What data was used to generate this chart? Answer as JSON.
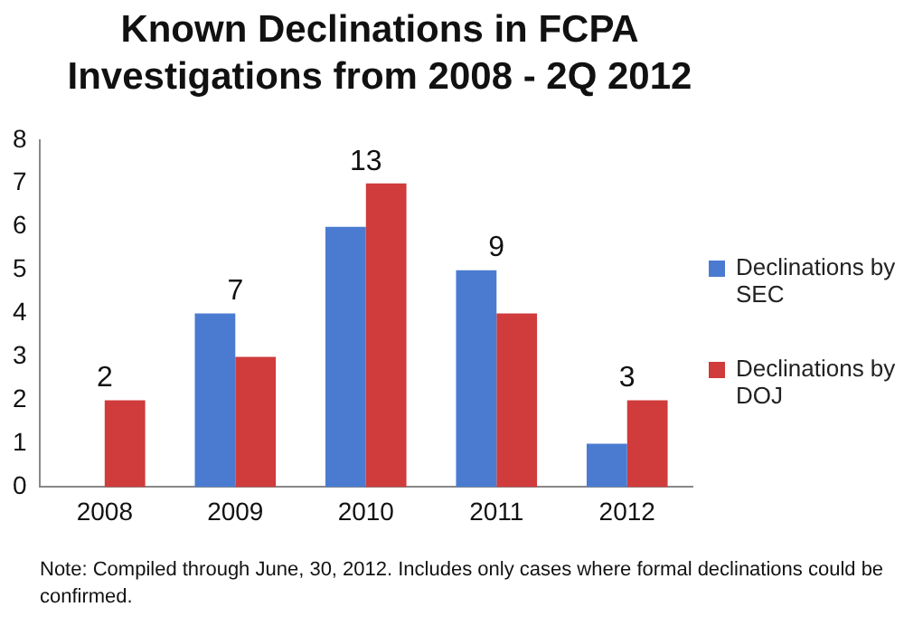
{
  "chart_data": {
    "type": "bar",
    "title": "Known Declinations in FCPA Investigations from 2008 - 2Q 2012",
    "categories": [
      "2008",
      "2009",
      "2010",
      "2011",
      "2012"
    ],
    "series": [
      {
        "name": "Declinations by SEC",
        "color": "#4a7bd0",
        "values": [
          0,
          4,
          6,
          5,
          1
        ]
      },
      {
        "name": "Declinations by DOJ",
        "color": "#d03b3b",
        "values": [
          2,
          3,
          7,
          4,
          2
        ]
      }
    ],
    "totals": [
      "2",
      "7",
      "13",
      "9",
      "3"
    ],
    "ylim": [
      0,
      8
    ],
    "yticks": [
      0,
      1,
      2,
      3,
      4,
      5,
      6,
      7,
      8
    ],
    "grid": false,
    "legend": "right",
    "annotations": [
      "Note: Compiled through June, 30, 2012. Includes only cases where formal declinations could be confirmed."
    ]
  }
}
